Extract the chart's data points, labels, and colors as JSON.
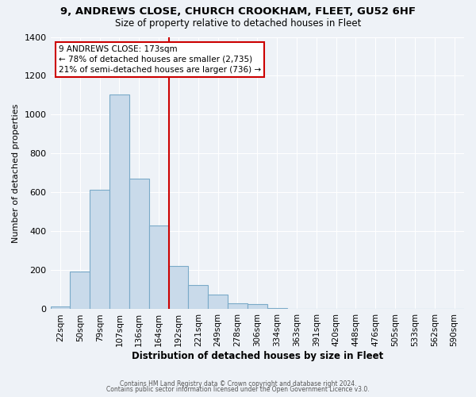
{
  "title": "9, ANDREWS CLOSE, CHURCH CROOKHAM, FLEET, GU52 6HF",
  "subtitle": "Size of property relative to detached houses in Fleet",
  "xlabel": "Distribution of detached houses by size in Fleet",
  "ylabel": "Number of detached properties",
  "bar_labels": [
    "22sqm",
    "50sqm",
    "79sqm",
    "107sqm",
    "136sqm",
    "164sqm",
    "192sqm",
    "221sqm",
    "249sqm",
    "278sqm",
    "306sqm",
    "334sqm",
    "363sqm",
    "391sqm",
    "420sqm",
    "448sqm",
    "476sqm",
    "505sqm",
    "533sqm",
    "562sqm",
    "590sqm"
  ],
  "bar_values": [
    15,
    193,
    615,
    1105,
    672,
    430,
    223,
    125,
    75,
    30,
    25,
    5,
    3,
    2,
    1,
    0,
    0,
    0,
    0,
    0,
    0
  ],
  "bar_color": "#c9daea",
  "bar_edge_color": "#7aaac8",
  "ylim": [
    0,
    1400
  ],
  "yticks": [
    0,
    200,
    400,
    600,
    800,
    1000,
    1200,
    1400
  ],
  "property_line_x": 5.5,
  "property_line_color": "#cc0000",
  "annotation_title": "9 ANDREWS CLOSE: 173sqm",
  "annotation_line1": "← 78% of detached houses are smaller (2,735)",
  "annotation_line2": "21% of semi-detached houses are larger (736) →",
  "annotation_box_color": "#cc0000",
  "footer1": "Contains HM Land Registry data © Crown copyright and database right 2024.",
  "footer2": "Contains public sector information licensed under the Open Government Licence v3.0.",
  "background_color": "#eef2f7",
  "grid_color": "#ffffff"
}
